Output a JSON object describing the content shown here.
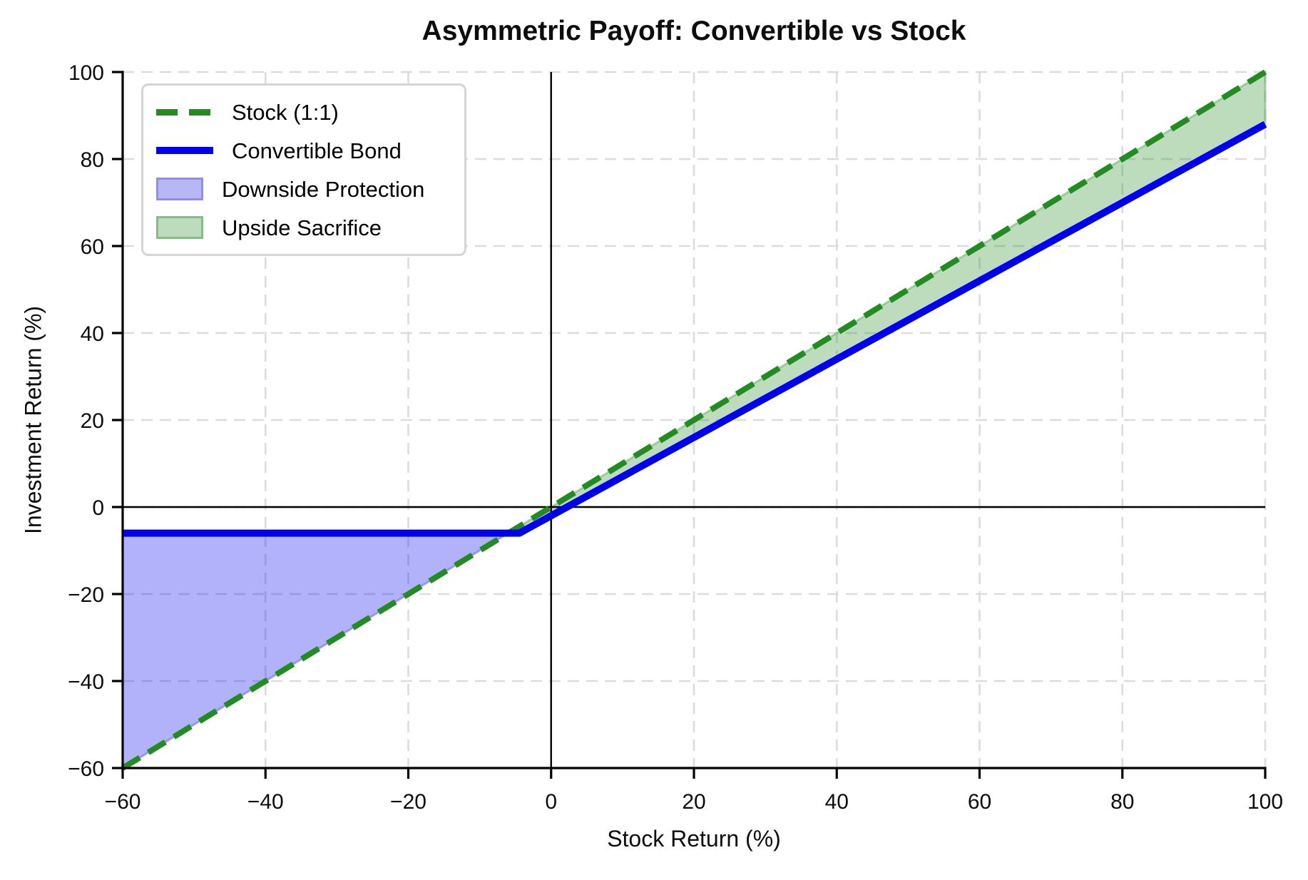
{
  "chart_data": {
    "type": "line",
    "title": "Asymmetric Payoff: Convertible vs Stock",
    "xlabel": "Stock Return (%)",
    "ylabel": "Investment Return (%)",
    "xlim": [
      -60,
      100
    ],
    "ylim": [
      -60,
      100
    ],
    "xticks": [
      -60,
      -40,
      -20,
      0,
      20,
      40,
      60,
      80,
      100
    ],
    "yticks": [
      -60,
      -40,
      -20,
      0,
      20,
      40,
      60,
      80,
      100
    ],
    "xtick_labels": [
      "−60",
      "−40",
      "−20",
      "0",
      "20",
      "40",
      "60",
      "80",
      "100"
    ],
    "ytick_labels": [
      "−60",
      "−40",
      "−20",
      "0",
      "20",
      "40",
      "60",
      "80",
      "100"
    ],
    "grid": {
      "visible": true,
      "style": "dashed",
      "color": "#dcdcdc"
    },
    "reference_lines": {
      "h_at": 0,
      "v_at": 0,
      "color": "#000000"
    },
    "series": [
      {
        "name": "Stock (1:1)",
        "style": "dashed",
        "color": "#228B22",
        "width": 8,
        "points": [
          [
            -60,
            -60
          ],
          [
            100,
            100
          ]
        ]
      },
      {
        "name": "Convertible Bond",
        "style": "solid",
        "color": "#0000EE",
        "width": 10,
        "points": [
          [
            -60,
            -6
          ],
          [
            -4.44,
            -6
          ],
          [
            100,
            88
          ]
        ]
      }
    ],
    "fills": [
      {
        "name": "Downside Protection",
        "color": "#0000EE",
        "opacity": 0.3,
        "edge": "#6a6ae2",
        "upper_series": 1,
        "lower_series": 0,
        "x_range": [
          -60,
          -6
        ]
      },
      {
        "name": "Upside Sacrifice",
        "color": "#228B22",
        "opacity": 0.3,
        "edge": "#6fae6f",
        "upper_series": 0,
        "lower_series": 1,
        "x_range": [
          -6,
          100
        ]
      }
    ],
    "legend": {
      "position": "upper left",
      "items": [
        "Stock (1:1)",
        "Convertible Bond",
        "Downside Protection",
        "Upside Sacrifice"
      ]
    }
  }
}
